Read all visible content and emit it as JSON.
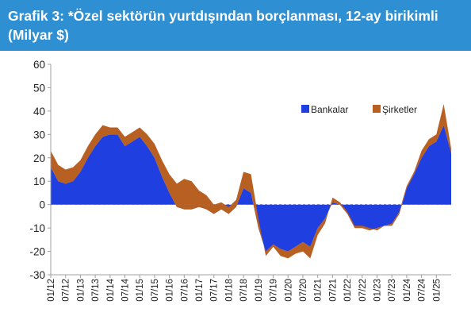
{
  "header": {
    "title": "Grafik 3: *Özel sektörün yurtdışından borçlanması, 12-ay birikimli (Milyar $)"
  },
  "colors": {
    "header_bg": "#2e8fd2",
    "header_text": "#ffffff",
    "bankalar": "#1f3fe0",
    "sirketler": "#b85f22"
  },
  "chart_data": {
    "type": "area",
    "stacked": true,
    "title": "Grafik 3: *Özel sektörün yurtdışından borçlanması, 12-ay birikimli (Milyar $)",
    "xlabel": "",
    "ylabel": "",
    "ylim": [
      -30,
      60
    ],
    "yticks": [
      60,
      50,
      40,
      30,
      20,
      10,
      0,
      -10,
      -20,
      -30
    ],
    "xlim": [
      "2012-01",
      "2025-07"
    ],
    "xticks": [
      "01/12",
      "07/12",
      "01/13",
      "07/13",
      "01/14",
      "07/14",
      "01/15",
      "07/15",
      "01/16",
      "07/16",
      "01/17",
      "07/17",
      "01/18",
      "07/18",
      "01/19",
      "07/19",
      "01/20",
      "07/20",
      "01/21",
      "07/21",
      "01/22",
      "07/22",
      "01/23",
      "07/23",
      "01/24",
      "07/24",
      "01/25"
    ],
    "grid": false,
    "legend": {
      "position": "top-right",
      "entries": [
        "Bankalar",
        "Şirketler"
      ]
    },
    "x": [
      "2012-01",
      "2012-04",
      "2012-07",
      "2012-10",
      "2013-01",
      "2013-04",
      "2013-07",
      "2013-10",
      "2014-01",
      "2014-04",
      "2014-07",
      "2014-10",
      "2015-01",
      "2015-04",
      "2015-07",
      "2015-10",
      "2016-01",
      "2016-04",
      "2016-07",
      "2016-10",
      "2017-01",
      "2017-04",
      "2017-07",
      "2017-10",
      "2018-01",
      "2018-04",
      "2018-07",
      "2018-10",
      "2019-01",
      "2019-04",
      "2019-07",
      "2019-10",
      "2020-01",
      "2020-04",
      "2020-07",
      "2020-10",
      "2021-01",
      "2021-04",
      "2021-07",
      "2021-10",
      "2022-01",
      "2022-04",
      "2022-07",
      "2022-10",
      "2023-01",
      "2023-04",
      "2023-07",
      "2023-10",
      "2024-01",
      "2024-04",
      "2024-07",
      "2024-10",
      "2025-01",
      "2025-04",
      "2025-07"
    ],
    "series": [
      {
        "name": "Bankalar",
        "values": [
          16,
          10,
          9,
          10,
          14,
          20,
          25,
          29,
          30,
          30,
          25,
          27,
          29,
          25,
          20,
          12,
          5,
          -1,
          -2,
          -2,
          -1,
          -2,
          -4,
          -2,
          -4,
          -1,
          7,
          5,
          -10,
          -20,
          -17,
          -19,
          -20,
          -18,
          -16,
          -18,
          -10,
          -6,
          1,
          0,
          -4,
          -10,
          -10,
          -11,
          -10,
          -9,
          -9,
          -4,
          7,
          13,
          20,
          25,
          27,
          34,
          22
        ]
      },
      {
        "name": "Şirketler",
        "values": [
          7,
          7,
          6,
          6,
          5,
          5,
          5,
          5,
          3,
          3,
          4,
          4,
          4,
          5,
          6,
          7,
          8,
          10,
          13,
          12,
          7,
          6,
          4,
          3,
          3,
          3,
          7,
          8,
          4,
          -2,
          -1,
          -3,
          -3,
          -3,
          -4,
          -5,
          -3,
          -2,
          2,
          1,
          1,
          1,
          1,
          1,
          -1,
          0,
          1,
          1,
          1,
          1,
          3,
          3,
          3,
          9,
          2
        ]
      }
    ]
  }
}
